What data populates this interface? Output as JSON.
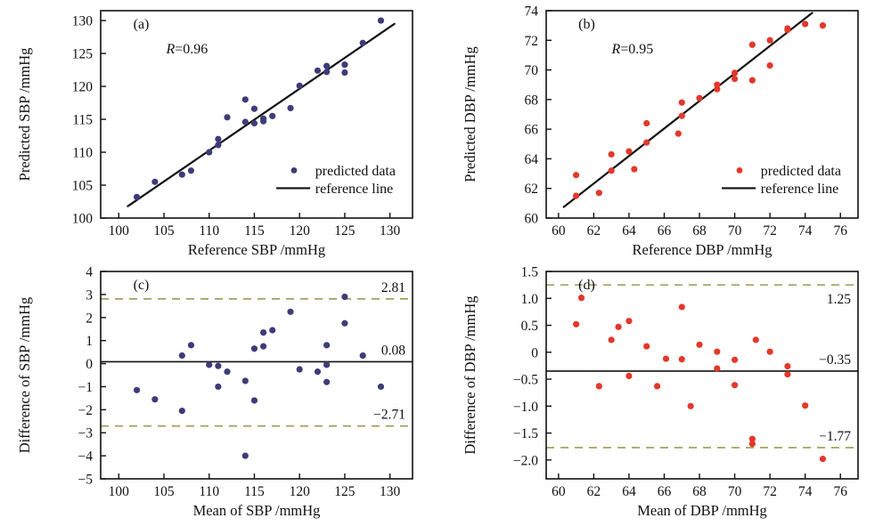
{
  "figure": {
    "background": "#ffffff",
    "axis_color": "#111111",
    "dashed_line_color": "#9c9a53",
    "reference_line_color": "#111111",
    "sbp_point_color": "#3d3c78",
    "dbp_point_color": "#e2382b"
  },
  "legend": {
    "dot_label": "predicted data",
    "line_label": "reference line"
  },
  "chart_data": [
    {
      "id": "a",
      "type": "scatter",
      "panel_label": "(a)",
      "r_label": "R=0.96",
      "xlabel": "Reference SBP /mmHg",
      "ylabel": "Predicted SBP /mmHg",
      "xlim": [
        98,
        132.5
      ],
      "ylim": [
        100,
        131.5
      ],
      "xticks": [
        100,
        105,
        110,
        115,
        120,
        125,
        130
      ],
      "xtick_labels": [
        "100",
        "105",
        "110",
        "115",
        "120",
        "125",
        "130"
      ],
      "yticks": [
        100,
        105,
        110,
        115,
        120,
        125,
        130
      ],
      "ytick_labels": [
        "100",
        "105",
        "110",
        "115",
        "120",
        "125",
        "130"
      ],
      "point_color": "#3d3c78",
      "points": [
        [
          102,
          103.2
        ],
        [
          104,
          105.5
        ],
        [
          107,
          106.6
        ],
        [
          108,
          107.2
        ],
        [
          110,
          110.0
        ],
        [
          111,
          111.1
        ],
        [
          111,
          112.0
        ],
        [
          112,
          115.3
        ],
        [
          114,
          114.6
        ],
        [
          114,
          118.0
        ],
        [
          115,
          114.4
        ],
        [
          115,
          116.6
        ],
        [
          116,
          114.7
        ],
        [
          116,
          115.1
        ],
        [
          117,
          115.5
        ],
        [
          119,
          116.7
        ],
        [
          120,
          120.1
        ],
        [
          122,
          122.4
        ],
        [
          123,
          122.2
        ],
        [
          123,
          123.1
        ],
        [
          125,
          122.1
        ],
        [
          125,
          123.3
        ],
        [
          127,
          126.6
        ],
        [
          129,
          130.0
        ]
      ],
      "reference_line": {
        "x1": 101,
        "y1": 101.8,
        "x2": 130.5,
        "y2": 129.5
      },
      "has_legend": true
    },
    {
      "id": "b",
      "type": "scatter",
      "panel_label": "(b)",
      "r_label": "R=0.95",
      "xlabel": "Reference DBP /mmHg",
      "ylabel": "Predicted DBP /mmHg",
      "xlim": [
        59.3,
        77
      ],
      "ylim": [
        60,
        74
      ],
      "xticks": [
        60,
        62,
        64,
        66,
        68,
        70,
        72,
        74,
        76
      ],
      "xtick_labels": [
        "60",
        "62",
        "64",
        "66",
        "68",
        "70",
        "72",
        "74",
        "76"
      ],
      "yticks": [
        60,
        62,
        64,
        66,
        68,
        70,
        72,
        74
      ],
      "ytick_labels": [
        "60",
        "62",
        "64",
        "66",
        "68",
        "70",
        "72",
        "74"
      ],
      "point_color": "#e2382b",
      "points": [
        [
          61,
          61.5
        ],
        [
          61,
          62.9
        ],
        [
          62.3,
          61.7
        ],
        [
          63,
          63.2
        ],
        [
          63,
          64.3
        ],
        [
          64,
          64.5
        ],
        [
          64.3,
          63.3
        ],
        [
          65,
          65.1
        ],
        [
          65,
          66.4
        ],
        [
          66.8,
          65.7
        ],
        [
          67,
          66.9
        ],
        [
          67,
          67.8
        ],
        [
          68,
          68.1
        ],
        [
          69,
          68.7
        ],
        [
          69,
          69.0
        ],
        [
          70,
          69.4
        ],
        [
          70,
          69.8
        ],
        [
          71,
          69.3
        ],
        [
          71,
          71.7
        ],
        [
          72,
          70.3
        ],
        [
          72,
          72.0
        ],
        [
          73,
          72.7
        ],
        [
          73,
          72.8
        ],
        [
          74,
          73.1
        ],
        [
          75,
          73.0
        ]
      ],
      "reference_line": {
        "x1": 60.3,
        "y1": 60.75,
        "x2": 74.4,
        "y2": 73.85
      },
      "has_legend": true
    },
    {
      "id": "c",
      "type": "scatter",
      "panel_label": "(c)",
      "xlabel": "Mean of SBP /mmHg",
      "ylabel": "Difference of SBP /mmHg",
      "xlim": [
        98,
        132.5
      ],
      "ylim": [
        -5,
        4
      ],
      "xticks": [
        100,
        105,
        110,
        115,
        120,
        125,
        130
      ],
      "xtick_labels": [
        "100",
        "105",
        "110",
        "115",
        "120",
        "125",
        "130"
      ],
      "yticks": [
        4,
        3,
        2,
        1,
        0,
        -1,
        -2,
        -3,
        -4,
        -5
      ],
      "ytick_labels": [
        "4",
        "3",
        "2",
        "1",
        "0",
        "−1",
        "−2",
        "−3",
        "−4",
        "−5"
      ],
      "point_color": "#3d3c78",
      "points": [
        [
          102,
          -1.15
        ],
        [
          104,
          -1.55
        ],
        [
          107,
          -2.05
        ],
        [
          107,
          0.35
        ],
        [
          108,
          0.8
        ],
        [
          110,
          -0.05
        ],
        [
          111,
          -0.1
        ],
        [
          111,
          -1.0
        ],
        [
          112,
          -0.35
        ],
        [
          114,
          -0.75
        ],
        [
          114,
          -4.0
        ],
        [
          115,
          0.65
        ],
        [
          115,
          -1.6
        ],
        [
          116,
          0.75
        ],
        [
          116,
          1.35
        ],
        [
          117,
          1.45
        ],
        [
          119,
          2.25
        ],
        [
          120,
          -0.25
        ],
        [
          122,
          -0.35
        ],
        [
          123,
          -0.8
        ],
        [
          123,
          0.8
        ],
        [
          123,
          -0.05
        ],
        [
          125,
          1.75
        ],
        [
          125,
          2.9
        ],
        [
          127,
          0.35
        ],
        [
          129,
          -1.0
        ]
      ],
      "lines": [
        {
          "y": 2.81,
          "style": "dashed",
          "label": "2.81",
          "label_side": "above"
        },
        {
          "y": 0.08,
          "style": "solid",
          "label": "0.08",
          "label_side": "above"
        },
        {
          "y": -2.71,
          "style": "dashed",
          "label": "−2.71",
          "label_side": "above"
        }
      ]
    },
    {
      "id": "d",
      "type": "scatter",
      "panel_label": "(d)",
      "xlabel": "Mean of DBP /mmHg",
      "ylabel": "Difference of DBP /mmHg",
      "xlim": [
        59.3,
        77
      ],
      "ylim": [
        -2.35,
        1.5
      ],
      "xticks": [
        60,
        62,
        64,
        66,
        68,
        70,
        72,
        74,
        76
      ],
      "xtick_labels": [
        "60",
        "62",
        "64",
        "66",
        "68",
        "70",
        "72",
        "74",
        "76"
      ],
      "yticks": [
        1.5,
        1.0,
        0.5,
        0,
        -0.5,
        -1.0,
        -1.5,
        -2.0
      ],
      "ytick_labels": [
        "1.5",
        "1.0",
        "0.5",
        "0",
        "−0.5",
        "−1.0",
        "−1.5",
        "−2.0"
      ],
      "point_color": "#e2382b",
      "points": [
        [
          61,
          0.52
        ],
        [
          61.3,
          1.01
        ],
        [
          62.3,
          -0.63
        ],
        [
          63,
          0.23
        ],
        [
          63.4,
          0.47
        ],
        [
          64,
          0.58
        ],
        [
          64,
          -0.44
        ],
        [
          65,
          0.11
        ],
        [
          65.6,
          -0.63
        ],
        [
          66.1,
          -0.12
        ],
        [
          67,
          0.84
        ],
        [
          67,
          -0.13
        ],
        [
          67.5,
          -1.0
        ],
        [
          68,
          0.14
        ],
        [
          69,
          0.01
        ],
        [
          69,
          -0.3
        ],
        [
          70,
          -0.14
        ],
        [
          70,
          -0.61
        ],
        [
          71,
          -1.61
        ],
        [
          71,
          -1.7
        ],
        [
          71.2,
          0.23
        ],
        [
          72,
          0.01
        ],
        [
          73,
          -0.26
        ],
        [
          73,
          -0.41
        ],
        [
          74,
          -0.99
        ],
        [
          75,
          -1.98
        ]
      ],
      "lines": [
        {
          "y": 1.25,
          "style": "dashed",
          "label": "1.25",
          "label_side": "below"
        },
        {
          "y": -0.35,
          "style": "solid",
          "label": "−0.35",
          "label_side": "above"
        },
        {
          "y": -1.77,
          "style": "dashed",
          "label": "−1.77",
          "label_side": "above"
        }
      ]
    }
  ]
}
